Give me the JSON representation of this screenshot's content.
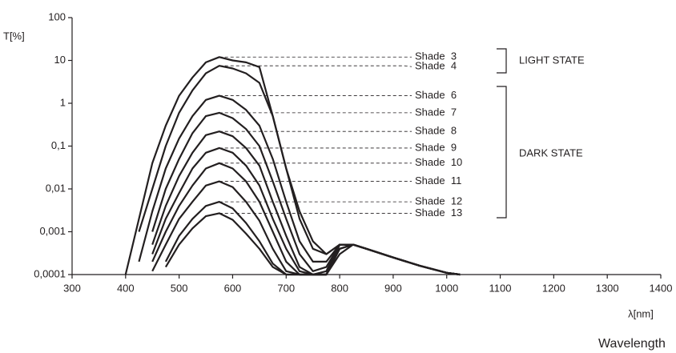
{
  "chart_data": {
    "type": "line",
    "y_label": "T[%]",
    "x_label": "λ[nm]",
    "caption": "Wavelength",
    "annotations": [
      "LIGHT STATE",
      "DARK STATE"
    ],
    "y_log": true,
    "xlim": [
      300,
      1400
    ],
    "xticks": [
      300,
      400,
      500,
      600,
      700,
      800,
      900,
      1000,
      1100,
      1200,
      1300,
      1400
    ],
    "ylim": [
      0.0001,
      100
    ],
    "yticks": [
      {
        "value": 0.0001,
        "label": "0,0001"
      },
      {
        "value": 0.001,
        "label": "0,001"
      },
      {
        "value": 0.01,
        "label": "0,01"
      },
      {
        "value": 0.1,
        "label": "0,1"
      },
      1,
      10,
      100
    ],
    "x": [
      400,
      425,
      450,
      475,
      500,
      525,
      550,
      575,
      600,
      625,
      650,
      675,
      700,
      725,
      750,
      775,
      800,
      825,
      850,
      900,
      950,
      1000,
      1025
    ],
    "series": [
      {
        "name": "Shade  3",
        "color": "#231f20",
        "values": [
          0.0001,
          0.002,
          0.04,
          0.3,
          1.5,
          4,
          9,
          12,
          10,
          9,
          7,
          0.5,
          0.03,
          0.003,
          0.0006,
          0.0003,
          0.0005,
          0.0005,
          0.0004,
          0.00025,
          0.00016,
          0.00011,
          0.0001
        ]
      },
      {
        "name": "Shade  4",
        "color": "#231f20",
        "values": [
          null,
          0.001,
          0.01,
          0.1,
          0.6,
          2,
          5,
          7.5,
          6.5,
          5,
          3,
          0.5,
          0.03,
          0.002,
          0.0004,
          0.0003,
          0.0005,
          0.0005,
          0.0004,
          0.00025,
          0.00016,
          0.00011,
          0.0001
        ]
      },
      {
        "name": "Shade  6",
        "color": "#231f20",
        "values": [
          null,
          0.0002,
          0.003,
          0.03,
          0.15,
          0.5,
          1.2,
          1.5,
          1.2,
          0.7,
          0.3,
          0.05,
          0.005,
          0.0006,
          0.0002,
          0.0002,
          0.0005,
          0.0005,
          0.0004,
          0.00025,
          0.00016,
          0.00011,
          0.0001
        ]
      },
      {
        "name": "Shade  7",
        "color": "#231f20",
        "values": [
          null,
          null,
          0.001,
          0.01,
          0.05,
          0.2,
          0.5,
          0.6,
          0.45,
          0.25,
          0.1,
          0.015,
          0.002,
          0.0003,
          0.00012,
          0.00015,
          0.0005,
          0.0005,
          0.0004,
          0.00025,
          0.00016,
          0.00011,
          0.0001
        ]
      },
      {
        "name": "Shade  8",
        "color": "#231f20",
        "values": [
          null,
          null,
          0.0005,
          0.004,
          0.02,
          0.07,
          0.18,
          0.22,
          0.17,
          0.09,
          0.035,
          0.005,
          0.0008,
          0.00015,
          0.0001,
          0.00012,
          0.0005,
          0.0005,
          0.0004,
          0.00025,
          0.00016,
          0.00011,
          0.0001
        ]
      },
      {
        "name": "Shade  9",
        "color": "#231f20",
        "values": [
          null,
          null,
          0.0003,
          0.002,
          0.008,
          0.03,
          0.07,
          0.09,
          0.07,
          0.035,
          0.012,
          0.002,
          0.0004,
          0.00012,
          0.0001,
          0.0001,
          0.0005,
          0.0005,
          0.0004,
          0.00025,
          0.00016,
          0.00011,
          0.0001
        ]
      },
      {
        "name": "Shade  10",
        "color": "#231f20",
        "values": [
          null,
          null,
          0.0002,
          0.001,
          0.004,
          0.012,
          0.03,
          0.04,
          0.03,
          0.015,
          0.005,
          0.001,
          0.0002,
          0.0001,
          0.0001,
          0.0001,
          0.0004,
          0.0005,
          0.0004,
          0.00025,
          0.00016,
          0.00011,
          0.0001
        ]
      },
      {
        "name": "Shade  11",
        "color": "#231f20",
        "values": [
          null,
          null,
          0.00012,
          0.0005,
          0.002,
          0.005,
          0.012,
          0.015,
          0.011,
          0.005,
          0.0018,
          0.0004,
          0.00012,
          0.0001,
          0.0001,
          0.0001,
          0.0004,
          0.0005,
          0.0004,
          0.00025,
          0.00016,
          0.00011,
          0.0001
        ]
      },
      {
        "name": "Shade  12",
        "color": "#231f20",
        "values": [
          null,
          null,
          null,
          0.0002,
          0.0008,
          0.002,
          0.004,
          0.005,
          0.0035,
          0.0016,
          0.0006,
          0.00018,
          0.0001,
          0.0001,
          0.0001,
          0.0001,
          0.0004,
          0.0005,
          0.0004,
          0.00025,
          0.00016,
          0.00011,
          0.0001
        ]
      },
      {
        "name": "Shade  13",
        "color": "#231f20",
        "values": [
          null,
          null,
          null,
          0.00015,
          0.0005,
          0.0012,
          0.0023,
          0.0027,
          0.0019,
          0.0009,
          0.0004,
          0.00015,
          0.0001,
          0.0001,
          0.0001,
          0.0001,
          0.0003,
          0.0005,
          0.0004,
          0.00025,
          0.00016,
          0.00011,
          0.0001
        ]
      }
    ]
  }
}
